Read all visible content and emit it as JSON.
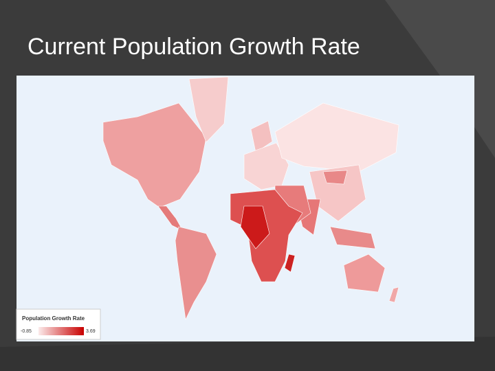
{
  "title": "Current Population Growth Rate",
  "legend": {
    "title": "Population Growth Rate",
    "min": -0.85,
    "max": 3.69,
    "low_color": "#fbeaea",
    "high_color": "#c80000"
  }
}
